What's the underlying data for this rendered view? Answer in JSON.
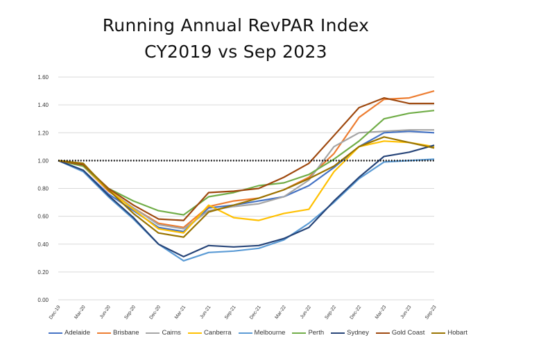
{
  "chart_data": {
    "type": "line",
    "title": "Running Annual RevPAR Index",
    "subtitle": "CY2019 vs Sep 2023",
    "categories": [
      "Dec-19",
      "Mar-20",
      "Jun-20",
      "Sep-20",
      "Dec-20",
      "Mar-21",
      "Jun-21",
      "Sep-21",
      "Dec-21",
      "Mar-22",
      "Jun-22",
      "Sep-22",
      "Dec-22",
      "Mar-23",
      "Jun-23",
      "Sep-23"
    ],
    "ylim": [
      0,
      1.6
    ],
    "yticks": [
      "0.00",
      "0.20",
      "0.40",
      "0.60",
      "0.80",
      "1.00",
      "1.20",
      "1.40",
      "1.60"
    ],
    "grid": true,
    "reference_line": 1.0,
    "legend_position": "bottom",
    "series": [
      {
        "name": "Adelaide",
        "color": "#4472c4",
        "values": [
          1.0,
          0.93,
          0.76,
          0.64,
          0.52,
          0.49,
          0.66,
          0.68,
          0.71,
          0.74,
          0.82,
          0.95,
          1.1,
          1.2,
          1.21,
          1.2
        ]
      },
      {
        "name": "Brisbane",
        "color": "#ed7d31",
        "values": [
          1.0,
          0.96,
          0.78,
          0.66,
          0.55,
          0.52,
          0.67,
          0.71,
          0.73,
          0.79,
          0.88,
          1.05,
          1.31,
          1.44,
          1.45,
          1.5
        ]
      },
      {
        "name": "Cairns",
        "color": "#a5a5a5",
        "values": [
          1.0,
          0.96,
          0.79,
          0.66,
          0.54,
          0.51,
          0.64,
          0.67,
          0.69,
          0.74,
          0.86,
          1.1,
          1.2,
          1.21,
          1.22,
          1.22
        ]
      },
      {
        "name": "Canberra",
        "color": "#ffc000",
        "values": [
          1.0,
          0.96,
          0.79,
          0.65,
          0.51,
          0.48,
          0.68,
          0.59,
          0.57,
          0.62,
          0.65,
          0.92,
          1.1,
          1.14,
          1.13,
          1.1
        ]
      },
      {
        "name": "Melbourne",
        "color": "#5b9bd5",
        "values": [
          1.0,
          0.92,
          0.74,
          0.58,
          0.4,
          0.28,
          0.34,
          0.35,
          0.37,
          0.43,
          0.55,
          0.7,
          0.87,
          0.99,
          1.0,
          1.01
        ]
      },
      {
        "name": "Perth",
        "color": "#70ad47",
        "values": [
          1.0,
          0.96,
          0.8,
          0.71,
          0.64,
          0.61,
          0.74,
          0.77,
          0.82,
          0.84,
          0.9,
          1.01,
          1.14,
          1.3,
          1.34,
          1.36
        ]
      },
      {
        "name": "Sydney",
        "color": "#264478",
        "values": [
          1.0,
          0.93,
          0.75,
          0.59,
          0.4,
          0.31,
          0.39,
          0.38,
          0.39,
          0.44,
          0.52,
          0.71,
          0.88,
          1.03,
          1.06,
          1.11
        ]
      },
      {
        "name": "Gold Coast",
        "color": "#9e480e",
        "values": [
          1.0,
          0.97,
          0.8,
          0.68,
          0.58,
          0.57,
          0.77,
          0.78,
          0.8,
          0.88,
          0.98,
          1.18,
          1.38,
          1.45,
          1.41,
          1.41
        ]
      },
      {
        "name": "Hobart",
        "color": "#997300",
        "values": [
          1.0,
          0.98,
          0.79,
          0.62,
          0.48,
          0.45,
          0.63,
          0.68,
          0.73,
          0.79,
          0.87,
          0.96,
          1.1,
          1.17,
          1.13,
          1.09
        ]
      }
    ]
  }
}
